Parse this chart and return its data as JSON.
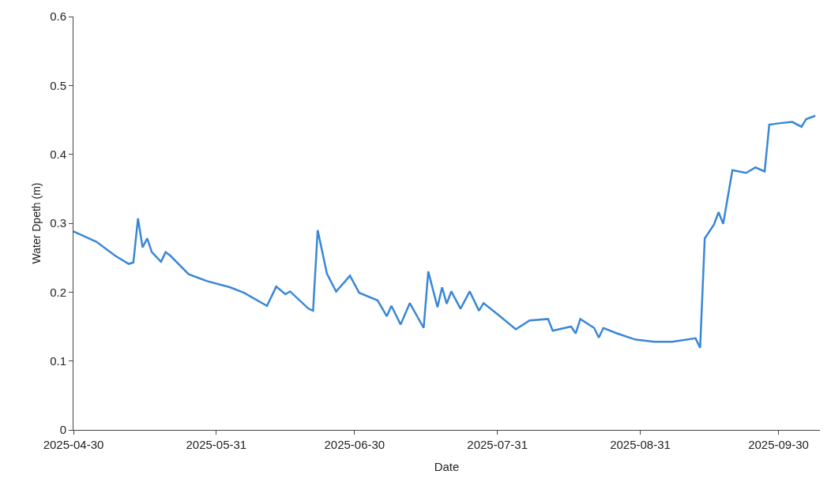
{
  "chart_data": {
    "type": "line",
    "xlabel": "Date",
    "ylabel": "Water Dpeth (m)",
    "x": [
      "2025-04-30",
      "2025-05-05",
      "2025-05-09",
      "2025-05-12",
      "2025-05-13",
      "2025-05-14",
      "2025-05-15",
      "2025-05-16",
      "2025-05-17",
      "2025-05-19",
      "2025-05-20",
      "2025-05-21",
      "2025-05-25",
      "2025-05-29",
      "2025-06-03",
      "2025-06-06",
      "2025-06-11",
      "2025-06-13",
      "2025-06-15",
      "2025-06-16",
      "2025-06-20",
      "2025-06-21",
      "2025-06-22",
      "2025-06-24",
      "2025-06-26",
      "2025-06-28",
      "2025-06-29",
      "2025-07-01",
      "2025-07-05",
      "2025-07-07",
      "2025-07-08",
      "2025-07-10",
      "2025-07-12",
      "2025-07-15",
      "2025-07-16",
      "2025-07-18",
      "2025-07-19",
      "2025-07-20",
      "2025-07-21",
      "2025-07-23",
      "2025-07-25",
      "2025-07-27",
      "2025-07-28",
      "2025-07-31",
      "2025-08-04",
      "2025-08-07",
      "2025-08-11",
      "2025-08-12",
      "2025-08-16",
      "2025-08-17",
      "2025-08-18",
      "2025-08-21",
      "2025-08-22",
      "2025-08-23",
      "2025-08-26",
      "2025-08-30",
      "2025-09-03",
      "2025-09-07",
      "2025-09-12",
      "2025-09-13",
      "2025-09-14",
      "2025-09-16",
      "2025-09-17",
      "2025-09-18",
      "2025-09-20",
      "2025-09-23",
      "2025-09-25",
      "2025-09-27",
      "2025-09-28",
      "2025-09-30",
      "2025-10-03",
      "2025-10-05",
      "2025-10-06",
      "2025-10-08"
    ],
    "series": [
      {
        "color": "#3a87d6",
        "values": [
          0.288,
          0.273,
          0.253,
          0.241,
          0.243,
          0.307,
          0.265,
          0.278,
          0.258,
          0.244,
          0.258,
          0.253,
          0.226,
          0.216,
          0.207,
          0.199,
          0.18,
          0.208,
          0.197,
          0.201,
          0.176,
          0.173,
          0.29,
          0.227,
          0.201,
          0.216,
          0.224,
          0.199,
          0.188,
          0.165,
          0.18,
          0.153,
          0.184,
          0.148,
          0.23,
          0.178,
          0.207,
          0.183,
          0.201,
          0.176,
          0.201,
          0.173,
          0.184,
          0.168,
          0.146,
          0.159,
          0.161,
          0.144,
          0.15,
          0.14,
          0.161,
          0.148,
          0.134,
          0.148,
          0.14,
          0.131,
          0.128,
          0.128,
          0.133,
          0.119,
          0.278,
          0.298,
          0.316,
          0.299,
          0.377,
          0.373,
          0.381,
          0.375,
          0.443,
          0.445,
          0.447,
          0.44,
          0.451,
          0.456
        ]
      }
    ],
    "xlim": [
      "2025-04-30",
      "2025-10-09"
    ],
    "xticks": [
      {
        "value": "2025-04-30",
        "label": "2025-04-30"
      },
      {
        "value": "2025-05-31",
        "label": "2025-05-31"
      },
      {
        "value": "2025-06-30",
        "label": "2025-06-30"
      },
      {
        "value": "2025-07-31",
        "label": "2025-07-31"
      },
      {
        "value": "2025-08-31",
        "label": "2025-08-31"
      },
      {
        "value": "2025-09-30",
        "label": "2025-09-30"
      }
    ],
    "ylim": [
      0,
      0.6
    ],
    "yticks": [
      0,
      0.1,
      0.2,
      0.3,
      0.4,
      0.5,
      0.6
    ],
    "marker": "none",
    "line_style": "solid"
  }
}
